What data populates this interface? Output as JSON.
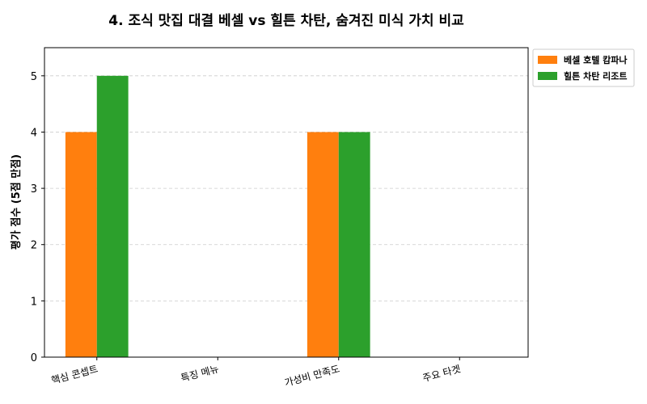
{
  "chart_data": {
    "type": "bar",
    "title": "4. 조식 맛집 대결 베셀 vs 힐튼 차탄, 숨겨진 미식 가치 비교",
    "xlabel": "",
    "ylabel": "평가 점수 (5점 만점)",
    "categories": [
      "핵심 콘셉트",
      "특징 메뉴",
      "가성비 만족도",
      "주요 타겟"
    ],
    "series": [
      {
        "name": "베셀 호텔 캄파나",
        "color": "#ff7f0e",
        "values": [
          4,
          0,
          4,
          0
        ]
      },
      {
        "name": "힐튼 차탄 리조트",
        "color": "#2ca02c",
        "values": [
          5,
          0,
          4,
          0
        ]
      }
    ],
    "ylim": [
      0,
      5.5
    ],
    "yticks": [
      "0",
      "1",
      "2",
      "3",
      "4",
      "5"
    ],
    "grid": true,
    "legend_position": "outside-top-right"
  }
}
